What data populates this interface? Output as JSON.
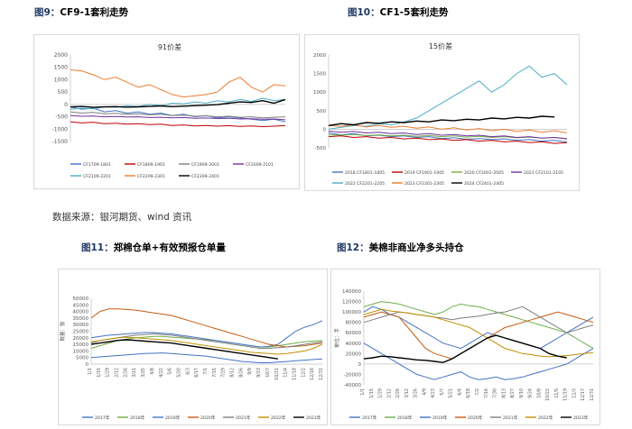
{
  "figures": {
    "f9": {
      "num": "图9：",
      "title": "CF9-1套利走势"
    },
    "f10": {
      "num": "图10：",
      "title": "CF1-5套利走势"
    },
    "f11": {
      "num": "图11：",
      "title": "郑棉仓单+有效预报仓单量"
    },
    "f12": {
      "num": "图12：",
      "title": "美棉非商业净多头持仓"
    }
  },
  "source": "数据来源：银河期货、wind 资讯",
  "colors": {
    "blue": "#4472c4",
    "orange": "#ed7d31",
    "grey": "#7f7f7f",
    "yellow": "#ffc000",
    "lightblue": "#5b9bd5",
    "green": "#70ad47",
    "darkred": "#c00000",
    "black": "#000000",
    "purple": "#7030a0",
    "red": "#e03030",
    "sky": "#4bacc6",
    "brown": "#9e480e",
    "navy": "#264478"
  },
  "chart_data": [
    {
      "id": "c9",
      "type": "line",
      "title": "91价差",
      "ylim": [
        -1500,
        2000
      ],
      "yticks": [
        -1500,
        -1000,
        -500,
        0,
        500,
        1000,
        1500,
        2000
      ],
      "legend": [
        "CF1709-1801",
        "CF1809-1901",
        "CF1909-2001",
        "CF2009-2101",
        "CF2109-2201",
        "CF2209-2301",
        "CF2309-2401"
      ],
      "series": [
        {
          "name": "CF1709-1801",
          "color": "#4472c4",
          "values": [
            -100,
            -200,
            -150,
            -300,
            -250,
            -350,
            -300,
            -400,
            -350,
            -450,
            -400,
            -500,
            -450,
            -550,
            -500,
            -550,
            -600,
            -650,
            -600,
            -700
          ]
        },
        {
          "name": "CF1809-1901",
          "color": "#c00000",
          "values": [
            -700,
            -750,
            -720,
            -780,
            -760,
            -800,
            -780,
            -820,
            -800,
            -850,
            -830,
            -870,
            -850,
            -880,
            -860,
            -890,
            -870,
            -900,
            -880,
            -860
          ]
        },
        {
          "name": "CF1909-2001",
          "color": "#7f7f7f",
          "values": [
            -300,
            -350,
            -320,
            -380,
            -360,
            -400,
            -380,
            -420,
            -400,
            -450,
            -430,
            -480,
            -460,
            -500,
            -480,
            -520,
            -500,
            -540,
            -520,
            -500
          ]
        },
        {
          "name": "CF2009-2101",
          "color": "#7030a0",
          "values": [
            -450,
            -480,
            -470,
            -500,
            -490,
            -510,
            -500,
            -530,
            -520,
            -540,
            -530,
            -560,
            -550,
            -570,
            -560,
            -590,
            -580,
            -600,
            -590,
            -620
          ]
        },
        {
          "name": "CF2109-2201",
          "color": "#4bacc6",
          "values": [
            -200,
            -150,
            -180,
            -100,
            -120,
            -50,
            -80,
            0,
            -50,
            50,
            20,
            100,
            50,
            150,
            100,
            200,
            120,
            250,
            150,
            200
          ]
        },
        {
          "name": "CF2209-2301",
          "color": "#ed7d31",
          "values": [
            1400,
            1350,
            1200,
            1000,
            1100,
            900,
            700,
            800,
            600,
            400,
            300,
            350,
            400,
            500,
            900,
            1100,
            700,
            500,
            800,
            750
          ]
        },
        {
          "name": "CF2309-2401",
          "color": "#000000",
          "values": [
            -100,
            -80,
            -120,
            -100,
            -90,
            -110,
            -100,
            -80,
            -60,
            -90,
            -70,
            -50,
            -30,
            -10,
            50,
            100,
            80,
            150,
            50,
            200
          ]
        }
      ]
    },
    {
      "id": "c10",
      "type": "line",
      "title": "15价差",
      "ylim": [
        -500,
        2000
      ],
      "yticks": [
        -500,
        0,
        500,
        1000,
        1500,
        2000
      ],
      "legend": [
        "2018 CF1801-1805",
        "2019 CF1901-1905",
        "2020 CF2001-2005",
        "2021 CF2101-2105",
        "2022 CF2201-2205",
        "2023 CF2301-2305",
        "2024 CF2401-2405"
      ],
      "series": [
        {
          "name": "2018 CF1801-1805",
          "color": "#4472c4",
          "values": [
            -100,
            -150,
            -120,
            -180,
            -160,
            -200,
            -180,
            -220,
            -200,
            -250,
            -230,
            -270,
            -250,
            -280,
            -260,
            -300,
            -280,
            -320,
            -300,
            -350
          ]
        },
        {
          "name": "2019 CF1901-1905",
          "color": "#c00000",
          "values": [
            -200,
            -180,
            -220,
            -200,
            -240,
            -220,
            -260,
            -240,
            -280,
            -260,
            -300,
            -280,
            -320,
            -300,
            -340,
            -320,
            -360,
            -340,
            -380,
            -360
          ]
        },
        {
          "name": "2020 CF2001-2005",
          "color": "#70ad47",
          "values": [
            -150,
            -160,
            -140,
            -170,
            -150,
            -180,
            -160,
            -190,
            -170,
            -200,
            -180,
            -210,
            -190,
            -220,
            -200,
            -230,
            -210,
            -240,
            -220,
            -250
          ]
        },
        {
          "name": "2021 CF2101-2105",
          "color": "#7030a0",
          "values": [
            -50,
            -80,
            -60,
            -100,
            -80,
            -120,
            -100,
            -140,
            -120,
            -160,
            -140,
            -180,
            -160,
            -200,
            -180,
            -220,
            -200,
            -240,
            -220,
            -260
          ]
        },
        {
          "name": "2022 CF2201-2205",
          "color": "#4bacc6",
          "values": [
            0,
            50,
            100,
            80,
            150,
            120,
            200,
            300,
            500,
            700,
            900,
            1100,
            1300,
            1000,
            1200,
            1500,
            1700,
            1400,
            1500,
            1200
          ]
        },
        {
          "name": "2023 CF2301-2305",
          "color": "#ed7d31",
          "values": [
            100,
            80,
            120,
            60,
            100,
            50,
            80,
            30,
            60,
            0,
            40,
            -20,
            20,
            -40,
            0,
            -60,
            -20,
            -80,
            -40,
            -100
          ]
        },
        {
          "name": "2024 CF2401-2405",
          "color": "#000000",
          "values": [
            100,
            150,
            120,
            180,
            160,
            200,
            180,
            220,
            200,
            250,
            230,
            270,
            250,
            300,
            280,
            320,
            300,
            350,
            330,
            null
          ]
        }
      ]
    },
    {
      "id": "c11",
      "type": "line",
      "ylabel": "数量：张",
      "ylim": [
        0,
        50000
      ],
      "yticks": [
        0,
        5000,
        10000,
        15000,
        20000,
        25000,
        30000,
        35000,
        40000,
        45000,
        50000
      ],
      "categories": [
        "1/1",
        "1/15",
        "1/29",
        "2/12",
        "2/26",
        "3/11",
        "3/25",
        "4/8",
        "4/22",
        "5/6",
        "5/20",
        "6/3",
        "6/17",
        "7/1",
        "7/15",
        "7/29",
        "8/12",
        "8/26",
        "9/9",
        "9/23",
        "10/7",
        "10/21",
        "11/4",
        "11/18",
        "12/2",
        "12/16",
        "12/31"
      ],
      "legend": [
        "2017年",
        "2018年",
        "2019年",
        "2020年",
        "2021年",
        "2022年",
        "2023年"
      ],
      "series": [
        {
          "name": "2017年",
          "color": "#4472c4",
          "values": [
            5000,
            5500,
            6000,
            6500,
            7000,
            7500,
            8000,
            8200,
            8500,
            8000,
            7500,
            7000,
            6500,
            6000,
            5000,
            4000,
            3000,
            2000,
            1500,
            1000,
            1000,
            1500,
            2000,
            2500,
            3000,
            3500,
            4000
          ]
        },
        {
          "name": "2018年",
          "color": "#70ad47",
          "values": [
            12000,
            14000,
            16000,
            18000,
            19000,
            20000,
            20500,
            21000,
            21000,
            20500,
            20000,
            19500,
            19000,
            18500,
            18000,
            17000,
            16000,
            15000,
            14000,
            13000,
            13000,
            14000,
            15000,
            16000,
            17000,
            17500,
            18000
          ]
        },
        {
          "name": "2019年",
          "color": "#4472c4",
          "values": [
            20000,
            21000,
            22000,
            22500,
            23000,
            23500,
            24000,
            24000,
            23500,
            23000,
            22000,
            21000,
            20000,
            19000,
            18000,
            17000,
            16000,
            15000,
            14000,
            13000,
            13500,
            15000,
            20000,
            25000,
            28000,
            30000,
            33000
          ]
        },
        {
          "name": "2020年",
          "color": "#c55a11",
          "values": [
            35000,
            40000,
            42000,
            42000,
            41500,
            41000,
            40000,
            39000,
            38000,
            37000,
            35000,
            33000,
            31000,
            29000,
            27000,
            25000,
            23000,
            21000,
            19000,
            17000,
            15000,
            14000,
            13000,
            13500,
            14000,
            15000,
            16000
          ]
        },
        {
          "name": "2021年",
          "color": "#7f7f7f",
          "values": [
            16000,
            18000,
            19000,
            20000,
            21000,
            22000,
            22500,
            23000,
            22500,
            22000,
            21000,
            20000,
            19000,
            18000,
            17000,
            16000,
            15000,
            14000,
            13000,
            12000,
            12000,
            12500,
            13000,
            14000,
            15000,
            16000,
            17000
          ]
        },
        {
          "name": "2022年",
          "color": "#bf9000",
          "values": [
            17000,
            18000,
            19000,
            20000,
            20500,
            20000,
            19500,
            19000,
            18500,
            18000,
            17000,
            16000,
            15000,
            14000,
            13000,
            12000,
            11000,
            10000,
            9000,
            8500,
            8000,
            7500,
            8000,
            9000,
            10000,
            12000,
            15000
          ]
        },
        {
          "name": "2023年",
          "color": "#000000",
          "values": [
            15000,
            16000,
            17000,
            18000,
            18500,
            18000,
            17500,
            17000,
            16500,
            16000,
            15000,
            14000,
            13000,
            12000,
            11000,
            10000,
            9000,
            8000,
            7000,
            6000,
            5000,
            4000,
            null,
            null,
            null,
            null,
            null
          ]
        }
      ]
    },
    {
      "id": "c12",
      "type": "line",
      "ylabel": "单位：手",
      "ylim": [
        -40000,
        140000
      ],
      "yticks": [
        -40000,
        -20000,
        0,
        20000,
        40000,
        60000,
        80000,
        100000,
        120000,
        140000
      ],
      "categories": [
        "1/1",
        "1/15",
        "1/29",
        "2/12",
        "2/26",
        "3/12",
        "3/26",
        "4/9",
        "4/23",
        "5/7",
        "5/21",
        "6/4",
        "6/18",
        "7/2",
        "7/16",
        "7/30",
        "8/13",
        "8/27",
        "9/10",
        "9/24",
        "10/8",
        "10/22",
        "11/5",
        "11/19",
        "12/3",
        "12/17",
        "12/31"
      ],
      "legend": [
        "2017年",
        "2018年",
        "2019年",
        "2020年",
        "2021年",
        "2022年",
        "2023年"
      ],
      "series": [
        {
          "name": "2017年",
          "color": "#4472c4",
          "values": [
            100000,
            110000,
            105000,
            95000,
            90000,
            80000,
            70000,
            60000,
            50000,
            40000,
            35000,
            30000,
            40000,
            50000,
            60000,
            55000,
            50000,
            45000,
            40000,
            35000,
            30000,
            40000,
            50000,
            60000,
            70000,
            80000,
            90000
          ]
        },
        {
          "name": "2018年",
          "color": "#70ad47",
          "values": [
            110000,
            115000,
            120000,
            118000,
            115000,
            110000,
            105000,
            100000,
            95000,
            100000,
            110000,
            115000,
            112000,
            110000,
            105000,
            100000,
            95000,
            90000,
            85000,
            80000,
            75000,
            70000,
            65000,
            60000,
            50000,
            40000,
            30000
          ]
        },
        {
          "name": "2019年",
          "color": "#4472c4",
          "values": [
            40000,
            30000,
            20000,
            10000,
            0,
            -10000,
            -20000,
            -25000,
            -30000,
            -25000,
            -20000,
            -15000,
            -25000,
            -30000,
            -28000,
            -25000,
            -30000,
            -28000,
            -25000,
            -20000,
            -15000,
            -10000,
            -5000,
            0,
            10000,
            20000,
            30000
          ]
        },
        {
          "name": "2020年",
          "color": "#c55a11",
          "values": [
            90000,
            95000,
            100000,
            95000,
            90000,
            70000,
            50000,
            30000,
            20000,
            15000,
            10000,
            20000,
            30000,
            40000,
            50000,
            60000,
            70000,
            75000,
            80000,
            85000,
            90000,
            95000,
            100000,
            95000,
            90000,
            85000,
            80000
          ]
        },
        {
          "name": "2021年",
          "color": "#7f7f7f",
          "values": [
            80000,
            85000,
            90000,
            95000,
            100000,
            98000,
            95000,
            93000,
            90000,
            88000,
            85000,
            88000,
            90000,
            92000,
            95000,
            98000,
            100000,
            105000,
            110000,
            100000,
            90000,
            80000,
            70000,
            60000,
            65000,
            70000,
            75000
          ]
        },
        {
          "name": "2022年",
          "color": "#bf9000",
          "values": [
            95000,
            100000,
            105000,
            102000,
            100000,
            98000,
            95000,
            93000,
            90000,
            85000,
            80000,
            75000,
            70000,
            60000,
            50000,
            40000,
            30000,
            25000,
            20000,
            18000,
            15000,
            14000,
            15000,
            16000,
            18000,
            20000,
            22000
          ]
        },
        {
          "name": "2023年",
          "color": "#000000",
          "values": [
            10000,
            12000,
            15000,
            14000,
            12000,
            10000,
            8000,
            7000,
            5000,
            3000,
            10000,
            20000,
            30000,
            40000,
            50000,
            55000,
            50000,
            45000,
            40000,
            35000,
            30000,
            20000,
            15000,
            12000,
            null,
            null,
            null
          ]
        }
      ]
    }
  ]
}
